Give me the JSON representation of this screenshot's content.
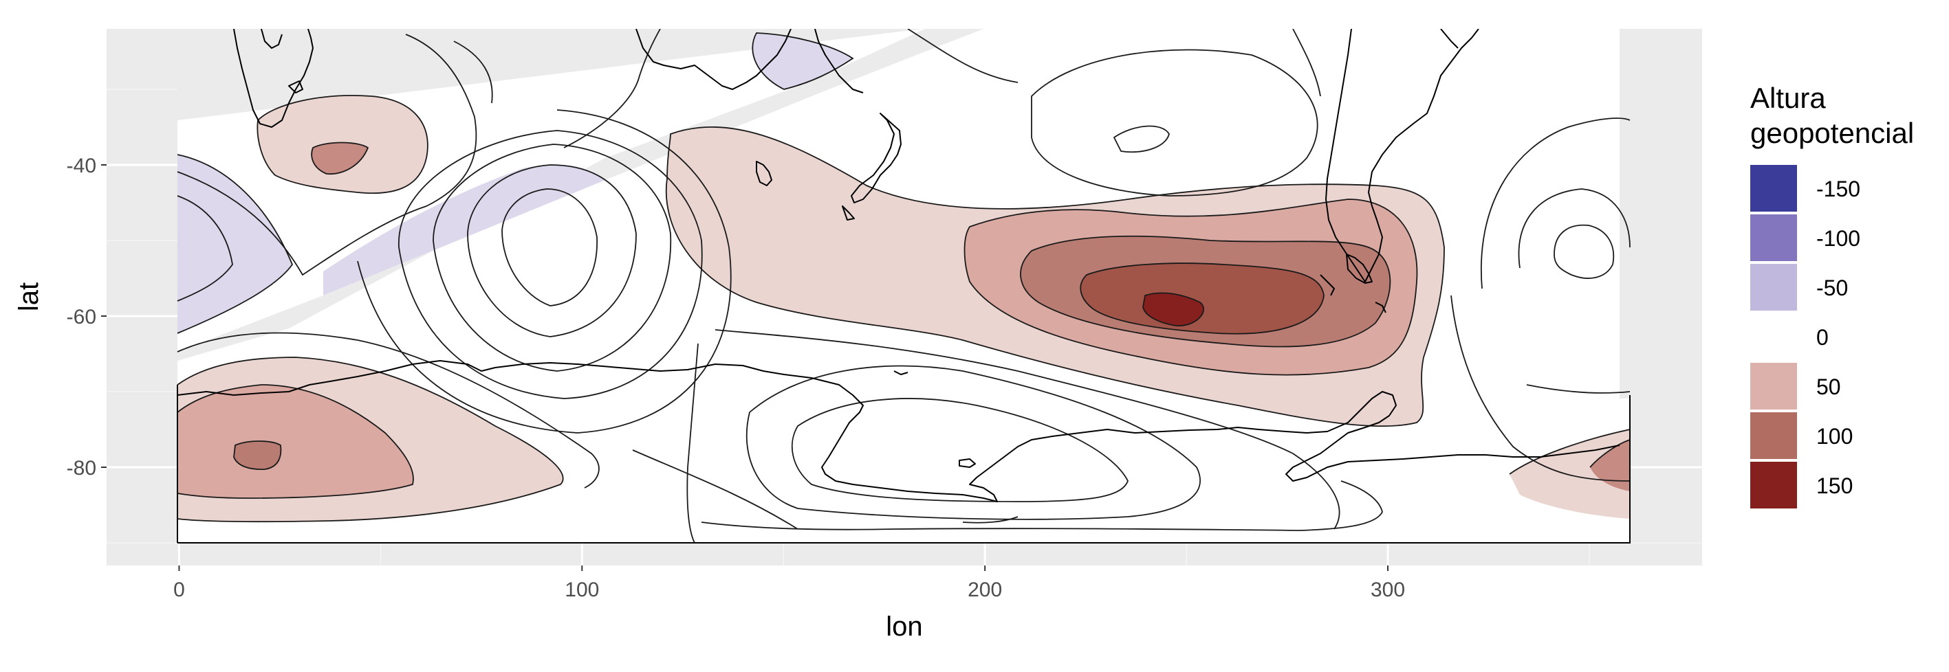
{
  "chart_data": {
    "type": "filled-contour-map",
    "xlabel": "lon",
    "ylabel": "lat",
    "x_ticks": [
      0,
      100,
      200,
      300
    ],
    "y_ticks": [
      -40,
      -60,
      -80
    ],
    "xlim": [
      -18,
      378
    ],
    "ylim": [
      -93,
      -22
    ],
    "grid": true,
    "legend_position": "right",
    "legend": {
      "title": [
        "Altura",
        "geopotencial"
      ],
      "entries": [
        {
          "label": "-150",
          "color": "#3b3b9a"
        },
        {
          "label": "-100",
          "color": "#8376be"
        },
        {
          "label": "-50",
          "color": "#c1b9dd"
        },
        {
          "label": "0",
          "color": "#ffffff"
        },
        {
          "label": "50",
          "color": "#dcb1ab"
        },
        {
          "label": "100",
          "color": "#b16d62"
        },
        {
          "label": "150",
          "color": "#86201f"
        }
      ]
    },
    "features": [
      {
        "kind": "high",
        "lon": 245,
        "lat": -59,
        "max_level": 150
      },
      {
        "kind": "high",
        "lon": 20,
        "lat": -78,
        "max_level": 100
      },
      {
        "kind": "high",
        "lon": 40,
        "lat": -39,
        "max_level": 100
      },
      {
        "kind": "high",
        "lon": 355,
        "lat": -80,
        "max_level": 100
      },
      {
        "kind": "low",
        "lon": 0,
        "lat": -52,
        "max_level": -50
      },
      {
        "kind": "low",
        "lon": 155,
        "lat": -26,
        "max_level": -50
      },
      {
        "kind": "low",
        "lon": 80,
        "lat": -52,
        "max_level": 0
      },
      {
        "kind": "low",
        "lon": 185,
        "lat": -85,
        "max_level": 0
      },
      {
        "kind": "low",
        "lon": 345,
        "lat": -52,
        "max_level": 0
      },
      {
        "kind": "low",
        "lon": 245,
        "lat": -30,
        "max_level": 0
      }
    ]
  },
  "colors": {
    "panel_background": "#ebebeb",
    "grid_major": "#ffffff",
    "grid_minor": "#f5f5f5",
    "contour_line": "#1a1a1a",
    "coastline": "#000000"
  }
}
